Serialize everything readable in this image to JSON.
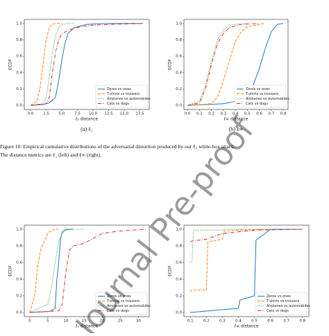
{
  "chart_data": [
    {
      "type": "line",
      "xlabel": "ℓ₂ distance",
      "ylabel": "ECDF",
      "xlim": [
        -1,
        19
      ],
      "xticks": [
        {
          "value": 0,
          "label": "0.0"
        },
        {
          "value": 2.5,
          "label": "2.5"
        },
        {
          "value": 5,
          "label": "5.0"
        },
        {
          "value": 7.5,
          "label": "7.5"
        },
        {
          "value": 10,
          "label": "10.0"
        },
        {
          "value": 12.5,
          "label": "12.5"
        },
        {
          "value": 15,
          "label": "15.0"
        },
        {
          "value": 17.5,
          "label": "17.5"
        }
      ],
      "ylim": [
        -0.05,
        1.05
      ],
      "yticks": [
        {
          "value": 0,
          "label": "0.0"
        },
        {
          "value": 0.2,
          "label": "0.2"
        },
        {
          "value": 0.4,
          "label": "0.4"
        },
        {
          "value": 0.6,
          "label": "0.6"
        },
        {
          "value": 0.8,
          "label": "0.8"
        },
        {
          "value": 1,
          "label": "1.0"
        }
      ],
      "legend": "lower right",
      "series": [
        {
          "name": "Zeros vs ones",
          "color": "#1f77b4",
          "style": "solid",
          "x": [
            0,
            2,
            3,
            4,
            4.5,
            5,
            5.5,
            6,
            7,
            9,
            12,
            18
          ],
          "values": [
            0,
            0.01,
            0.03,
            0.1,
            0.3,
            0.55,
            0.75,
            0.88,
            0.95,
            0.99,
            1,
            1
          ]
        },
        {
          "name": "T-shirts vs trousers",
          "color": "#ff7f0e",
          "style": "dashed",
          "x": [
            0,
            1,
            1.5,
            2,
            2.5,
            3,
            3.5,
            4,
            5
          ],
          "values": [
            0,
            0.05,
            0.2,
            0.5,
            0.8,
            0.95,
            0.99,
            1,
            1
          ]
        },
        {
          "name": "Airplanes vs automobiles",
          "color": "#2ca02c",
          "style": "dotted",
          "x": [
            0,
            2,
            2.5,
            3,
            3.5,
            4,
            4.5,
            5,
            6,
            7
          ],
          "values": [
            0,
            0.02,
            0.1,
            0.35,
            0.65,
            0.85,
            0.95,
            0.99,
            1,
            1
          ]
        },
        {
          "name": "Cats vs dogs",
          "color": "#d62728",
          "style": "dashdot",
          "x": [
            0,
            2.5,
            3,
            3.5,
            4,
            4.5,
            5,
            6,
            8,
            10,
            13,
            18
          ],
          "values": [
            0,
            0.02,
            0.1,
            0.4,
            0.65,
            0.8,
            0.87,
            0.92,
            0.96,
            0.98,
            0.99,
            1
          ]
        }
      ]
    },
    {
      "type": "line",
      "xlabel": "ℓ∞ distance",
      "ylabel": "ECDF",
      "xlim": [
        -0.03,
        0.84
      ],
      "xticks": [
        {
          "value": 0,
          "label": "0.0"
        },
        0.1,
        0.2,
        0.3,
        0.4,
        0.5,
        0.6,
        0.7,
        0.8
      ],
      "ylim": [
        -0.05,
        1.05
      ],
      "yticks": [
        {
          "value": 0,
          "label": "0.0"
        },
        0.2,
        0.4,
        0.6,
        0.8,
        {
          "value": 1,
          "label": "1.0"
        }
      ],
      "legend": "lower right",
      "series": [
        {
          "name": "Zeros vs ones",
          "color": "#1f77b4",
          "style": "solid",
          "x": [
            0,
            0.3,
            0.4,
            0.5,
            0.55,
            0.6,
            0.65,
            0.7,
            0.75,
            0.8
          ],
          "values": [
            0,
            0.02,
            0.05,
            0.12,
            0.25,
            0.45,
            0.7,
            0.9,
            0.99,
            1
          ]
        },
        {
          "name": "T-shirts vs trousers",
          "color": "#ff7f0e",
          "style": "dashed",
          "x": [
            0,
            0.2,
            0.25,
            0.3,
            0.35,
            0.4,
            0.45,
            0.5,
            0.6,
            0.65
          ],
          "values": [
            0,
            0.02,
            0.1,
            0.3,
            0.55,
            0.78,
            0.9,
            0.96,
            0.99,
            1
          ]
        },
        {
          "name": "Airplanes vs automobiles",
          "color": "#2ca02c",
          "style": "dotted",
          "x": [
            0,
            0.1,
            0.15,
            0.2,
            0.25,
            0.3,
            0.35,
            0.4,
            0.5
          ],
          "values": [
            0,
            0.05,
            0.25,
            0.55,
            0.8,
            0.92,
            0.98,
            0.99,
            1
          ]
        },
        {
          "name": "Cats vs dogs",
          "color": "#d62728",
          "style": "dashdot",
          "x": [
            0,
            0.1,
            0.15,
            0.2,
            0.25,
            0.3,
            0.35,
            0.45,
            0.6
          ],
          "values": [
            0,
            0.03,
            0.2,
            0.5,
            0.75,
            0.88,
            0.95,
            0.99,
            1
          ]
        }
      ]
    },
    {
      "type": "line",
      "xlabel": "ℓ₂ distance",
      "ylabel": "ECDF",
      "xlim": [
        -1.5,
        33
      ],
      "xticks": [
        0,
        5,
        10,
        15,
        20,
        25,
        30
      ],
      "ylim": [
        -0.05,
        1.05
      ],
      "yticks": [
        {
          "value": 0,
          "label": "0.0"
        },
        0.2,
        0.4,
        0.6,
        0.8,
        {
          "value": 1,
          "label": "1.0"
        }
      ],
      "legend": "lower right",
      "series": [
        {
          "name": "Zeros vs ones",
          "color": "#1f77b4",
          "style": "solid",
          "x": [
            0,
            5,
            6,
            7,
            7.5,
            8,
            8.5,
            9,
            10,
            12
          ],
          "values": [
            0,
            0.01,
            0.02,
            0.05,
            0.4,
            0.6,
            0.88,
            0.97,
            1,
            1
          ]
        },
        {
          "name": "T-shirts vs trousers",
          "color": "#ff7f0e",
          "style": "dashed",
          "x": [
            0,
            1.5,
            2,
            3,
            4,
            5,
            6,
            7,
            8
          ],
          "values": [
            0,
            0.22,
            0.5,
            0.75,
            0.85,
            0.95,
            0.99,
            1,
            1
          ]
        },
        {
          "name": "Airplanes vs automobiles",
          "color": "#2ca02c",
          "style": "dotted",
          "x": [
            0,
            5,
            6,
            7,
            8,
            9,
            10,
            12,
            15
          ],
          "values": [
            0,
            0.1,
            0.3,
            0.6,
            0.85,
            0.95,
            0.99,
            1,
            1
          ]
        },
        {
          "name": "Cats vs dogs",
          "color": "#d62728",
          "style": "dashdot",
          "x": [
            0,
            8,
            9,
            10,
            11,
            12,
            15,
            20,
            25,
            32
          ],
          "values": [
            0,
            0.02,
            0.1,
            0.5,
            0.75,
            0.8,
            0.83,
            0.95,
            0.98,
            1
          ]
        }
      ]
    },
    {
      "type": "line",
      "xlabel": "ℓ∞ distance",
      "ylabel": "ECDF",
      "xlim": [
        0.06,
        0.84
      ],
      "xticks": [
        0.1,
        0.2,
        0.3,
        0.4,
        0.5,
        0.6,
        0.7,
        0.8
      ],
      "ylim": [
        -0.05,
        1.05
      ],
      "yticks": [
        {
          "value": 0,
          "label": "0.0"
        },
        0.2,
        0.4,
        0.6,
        0.8,
        {
          "value": 1,
          "label": "1.0"
        }
      ],
      "legend": "lower right",
      "series": [
        {
          "name": "Zeros vs ones",
          "color": "#1f77b4",
          "style": "solid",
          "x": [
            0.1,
            0.4,
            0.41,
            0.5,
            0.51,
            0.6,
            0.8
          ],
          "values": [
            0,
            0.05,
            0.15,
            0.2,
            0.87,
            1,
            1
          ]
        },
        {
          "name": "T-shirts vs trousers",
          "color": "#ff7f0e",
          "style": "dashed",
          "x": [
            0.1,
            0.11,
            0.2,
            0.21,
            0.3,
            0.31,
            0.4,
            0.6
          ],
          "values": [
            0.25,
            0.27,
            0.27,
            0.85,
            0.88,
            0.98,
            0.99,
            1
          ]
        },
        {
          "name": "Airplanes vs automobiles",
          "color": "#2ca02c",
          "style": "dotted",
          "x": [
            0.1,
            0.11,
            0.12,
            0.3,
            0.31,
            0.6
          ],
          "values": [
            0.6,
            0.61,
            0.99,
            0.99,
            1,
            1
          ]
        },
        {
          "name": "Cats vs dogs",
          "color": "#d62728",
          "style": "dashdot",
          "x": [
            0.1,
            0.11,
            0.2,
            0.3,
            0.5,
            0.8
          ],
          "values": [
            0.85,
            0.86,
            0.88,
            0.95,
            0.99,
            1
          ]
        }
      ]
    }
  ],
  "subcaptions": [
    "(a) ℓ₂",
    "(b) ℓ∞"
  ],
  "figure_caption": [
    "Figure 10: Empirical cumulative distributions of the adversarial distortion produced by our ℓ₂ white-box attack.",
    "The distance metrics are ℓ₂ (left) and ℓ∞ (right)."
  ],
  "watermark": "Journal Pre-proof"
}
